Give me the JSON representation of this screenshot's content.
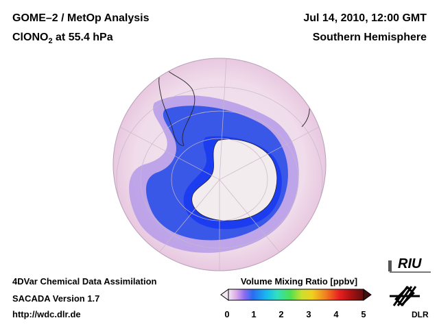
{
  "header": {
    "title_line1": "GOME–2 / MetOp Analysis",
    "title_line2_prefix": "ClONO",
    "title_line2_sub": "2",
    "title_line2_suffix": " at 55.4 hPa",
    "date": "Jul 14, 2010, 12:00 GMT",
    "region": "Southern Hemisphere"
  },
  "footer": {
    "line1": "4DVar Chemical Data Assimilation",
    "line2": "SACADA Version 1.7",
    "line3": "http://wdc.dlr.de"
  },
  "colorbar": {
    "title": "Volume Mixing Ratio [ppbv]",
    "ticks": [
      "0",
      "1",
      "2",
      "3",
      "4",
      "5"
    ],
    "colors": [
      "#f2e8f2",
      "#d9a8e8",
      "#8a6cf0",
      "#2a6cf0",
      "#18b8f0",
      "#30e0c0",
      "#50e050",
      "#c8e030",
      "#f0d020",
      "#f08020",
      "#e82020",
      "#a01010",
      "#601010"
    ]
  },
  "logos": {
    "riu": "RIU",
    "dlr": "DLR"
  }
}
